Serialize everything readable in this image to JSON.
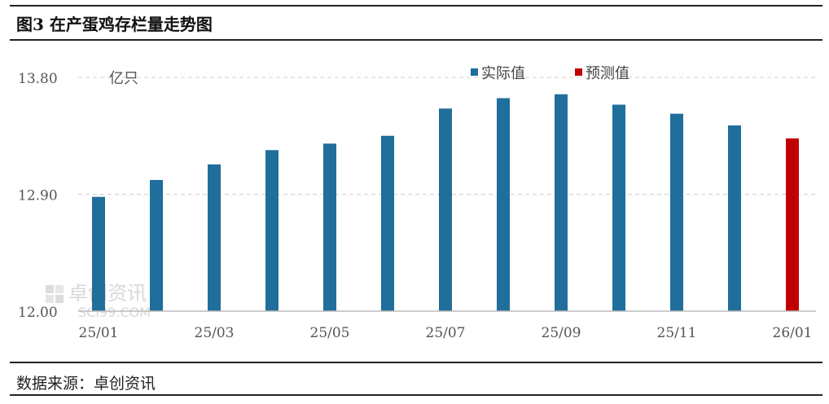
{
  "title": "图3 在产蛋鸡存栏量走势图",
  "source": "数据来源：卓创资讯",
  "watermark": {
    "name": "卓创资讯",
    "url": "SCI99.COM"
  },
  "colors": {
    "actual": "#1f6e9c",
    "forecast": "#c00000",
    "grid": "#d0d0d0",
    "text": "#555555"
  },
  "chart_data": {
    "type": "bar",
    "unit_label": "亿只",
    "ylim": [
      12.0,
      13.8
    ],
    "yticks": [
      "12.00",
      "12.90",
      "13.80"
    ],
    "categories": [
      "25/01",
      "25/02",
      "25/03",
      "25/04",
      "25/05",
      "25/06",
      "25/07",
      "25/08",
      "25/09",
      "25/10",
      "25/11",
      "25/12",
      "26/01"
    ],
    "x_tick_labels": [
      "25/01",
      "",
      "25/03",
      "",
      "25/05",
      "",
      "25/07",
      "",
      "25/09",
      "",
      "25/11",
      "",
      "26/01"
    ],
    "series": [
      {
        "name": "实际值",
        "values": [
          12.88,
          13.01,
          13.13,
          13.24,
          13.29,
          13.35,
          13.56,
          13.64,
          13.67,
          13.59,
          13.52,
          13.43,
          null
        ]
      },
      {
        "name": "预测值",
        "values": [
          null,
          null,
          null,
          null,
          null,
          null,
          null,
          null,
          null,
          null,
          null,
          null,
          13.33
        ]
      }
    ],
    "grid": true,
    "legend": "top-right"
  }
}
